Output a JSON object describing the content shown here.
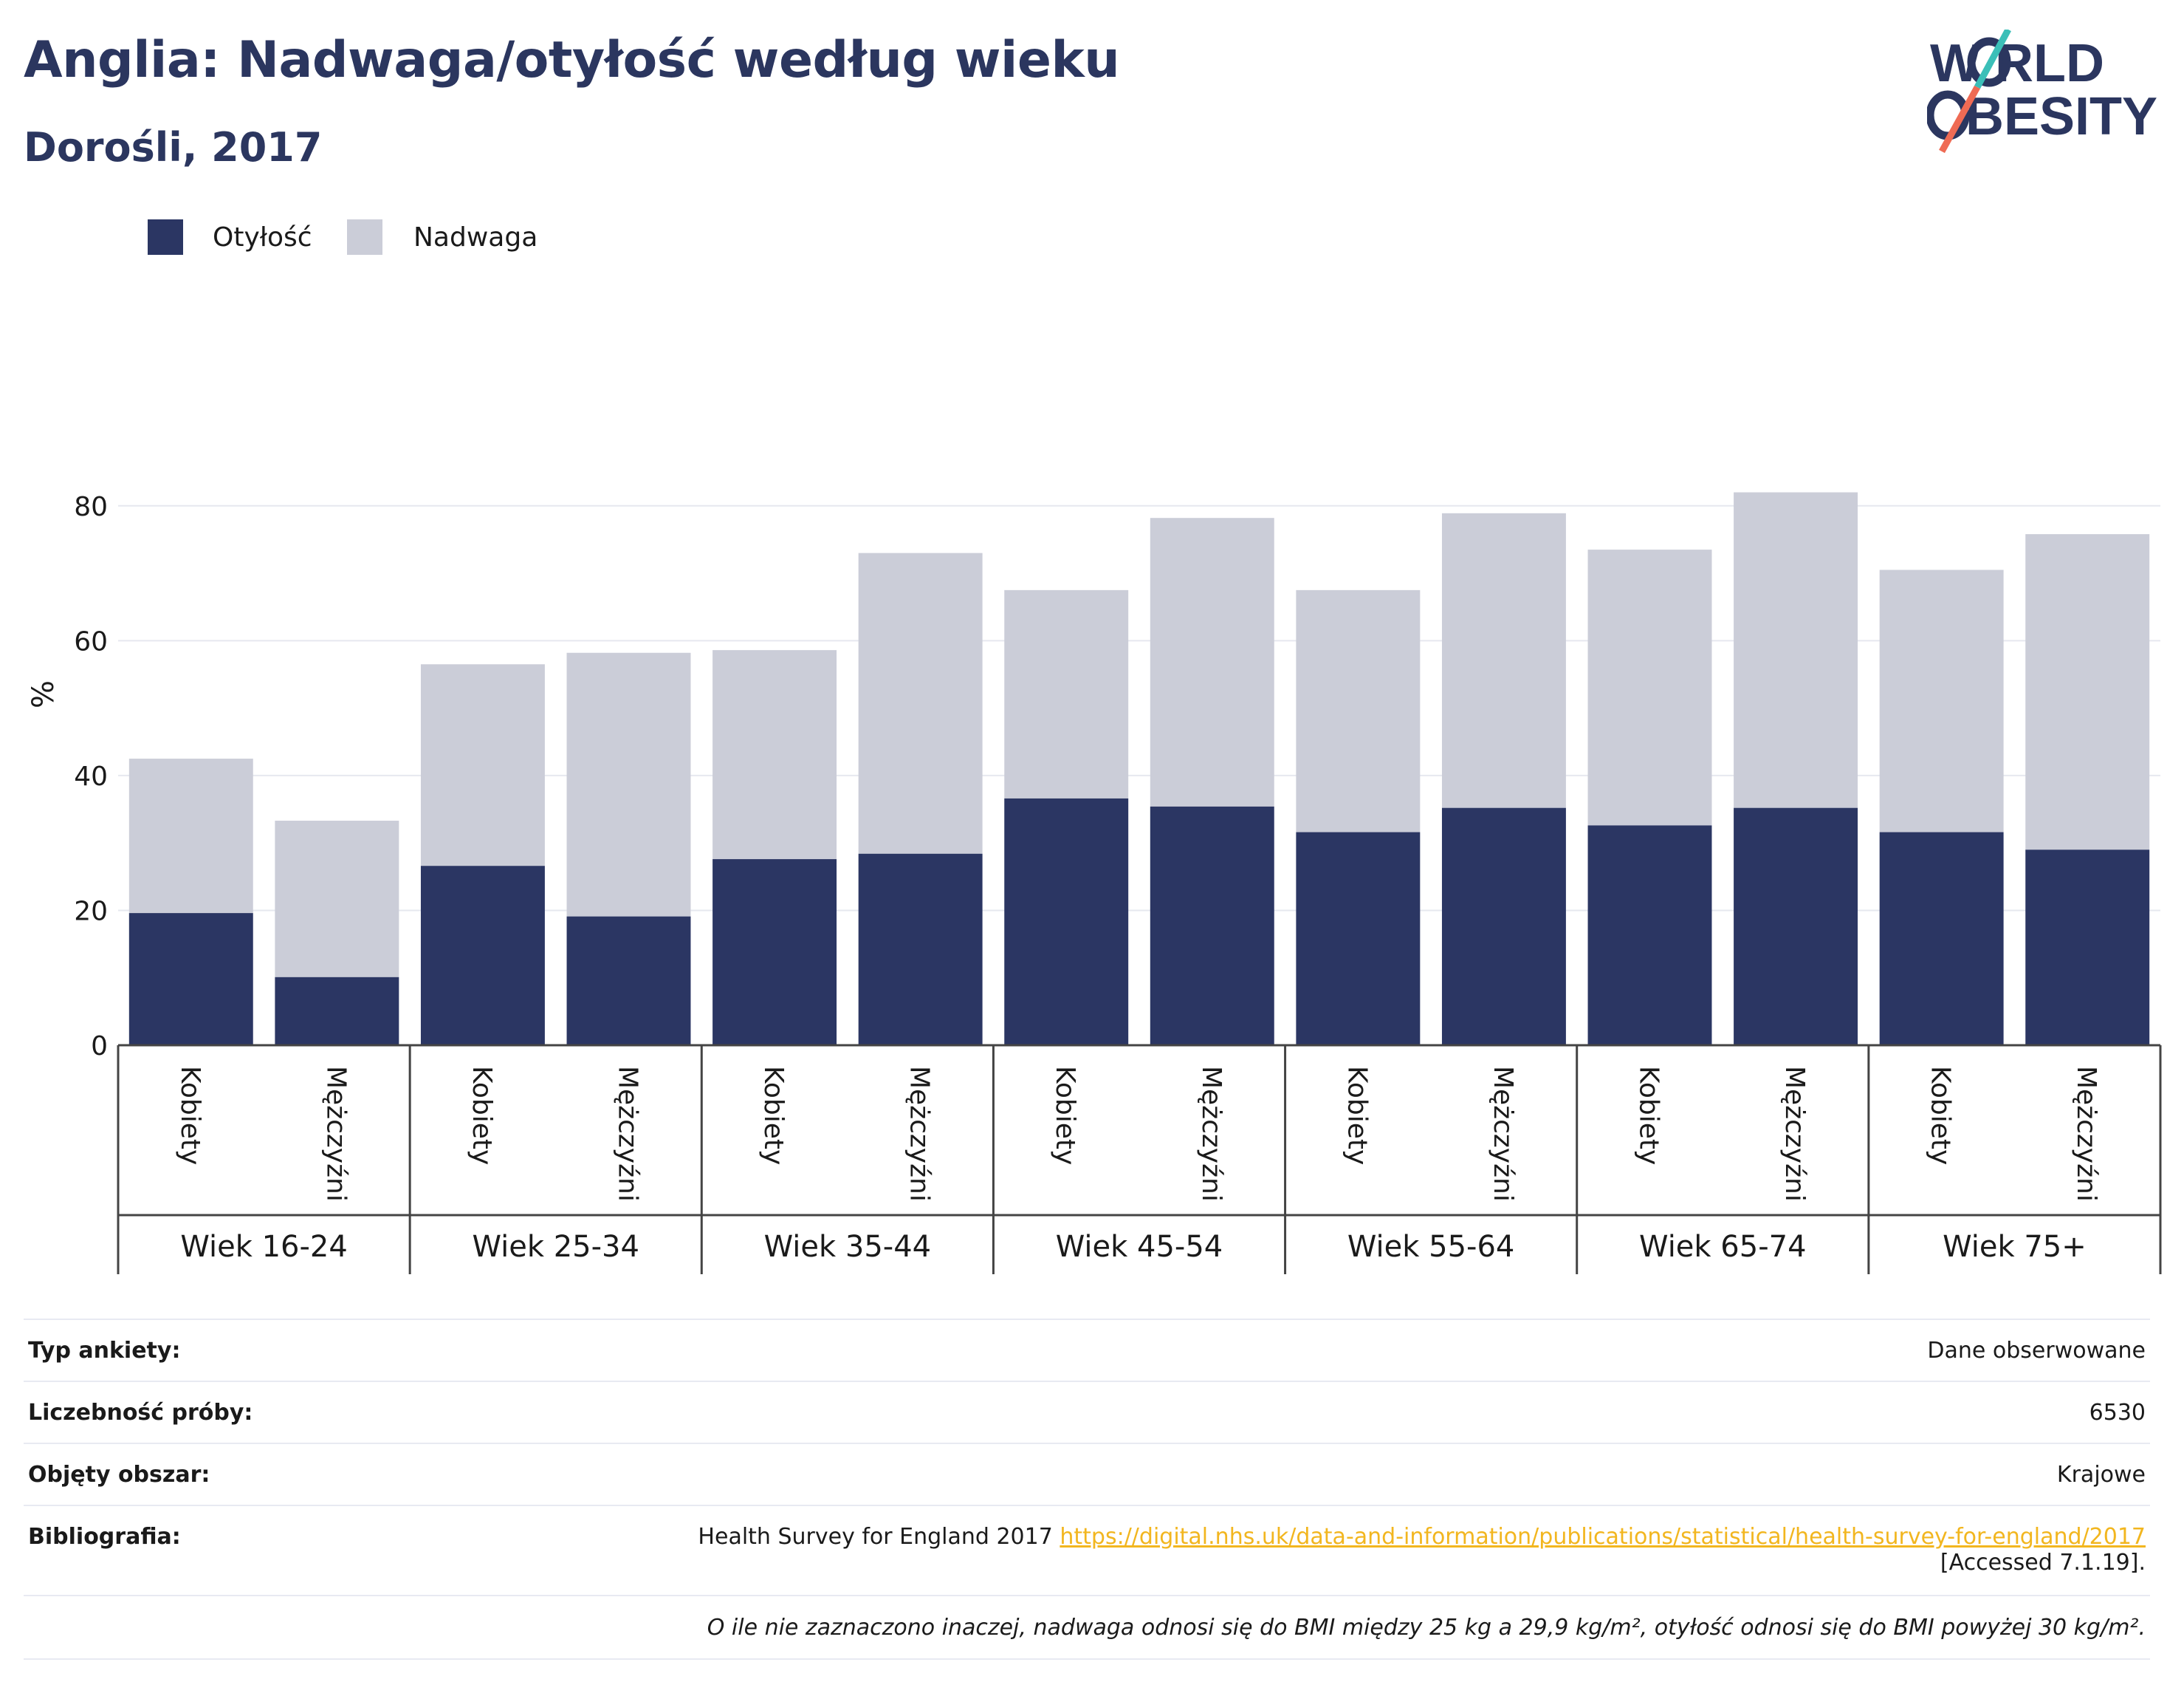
{
  "header": {
    "title": "Anglia: Nadwaga/otyłość według wieku",
    "subtitle": "Dorośli, 2017"
  },
  "logo": {
    "line1": "W RLD",
    "line2": "BESITY",
    "brand": "WORLD OBESITY",
    "colors": {
      "text": "#2b365f",
      "slash_top": "#3bbfb8",
      "slash_bottom": "#ef6b54"
    }
  },
  "colors": {
    "obesity": "#2b3663",
    "overweight": "#cbcdd8",
    "grid": "#e6e8ef",
    "axis": "#444444",
    "link": "#f2b61f"
  },
  "chart_data": {
    "type": "bar",
    "stacked": true,
    "title": "",
    "xlabel": "",
    "ylabel": "%",
    "ylim": [
      0,
      86
    ],
    "yticks": [
      0,
      20,
      40,
      60,
      80
    ],
    "grid": true,
    "legend_position": "top-left",
    "groups": [
      "Wiek 16-24",
      "Wiek 25-34",
      "Wiek 35-44",
      "Wiek 45-54",
      "Wiek 55-64",
      "Wiek 65-74",
      "Wiek 75+"
    ],
    "subcategories": [
      "Kobiety",
      "Mężczyźni"
    ],
    "series": [
      {
        "name": "Otyłość",
        "values": [
          19.6,
          10.1,
          26.6,
          19.1,
          27.6,
          28.4,
          36.6,
          35.4,
          31.6,
          35.2,
          32.6,
          35.2,
          31.6,
          29.0
        ]
      },
      {
        "name": "Nadwaga",
        "values": [
          22.9,
          23.2,
          29.9,
          39.1,
          31.0,
          44.6,
          30.9,
          42.8,
          35.9,
          43.7,
          40.9,
          46.8,
          38.9,
          46.8
        ]
      }
    ]
  },
  "info": {
    "rows": [
      {
        "label": "Typ ankiety:",
        "value": "Dane obserwowane"
      },
      {
        "label": "Liczebność próby:",
        "value": "6530"
      },
      {
        "label": "Objęty obszar:",
        "value": "Krajowe"
      }
    ],
    "bibliography": {
      "label": "Bibliografia:",
      "text": "Health Survey for England 2017",
      "link": "https://digital.nhs.uk/data-and-information/publications/statistical/health-survey-for-england/2017",
      "accessed": "[Accessed 7.1.19]."
    },
    "note": "O ile nie zaznaczono inaczej, nadwaga odnosi się do BMI między 25 kg a 29,9 kg/m², otyłość odnosi się do BMI powyżej 30 kg/m²."
  }
}
